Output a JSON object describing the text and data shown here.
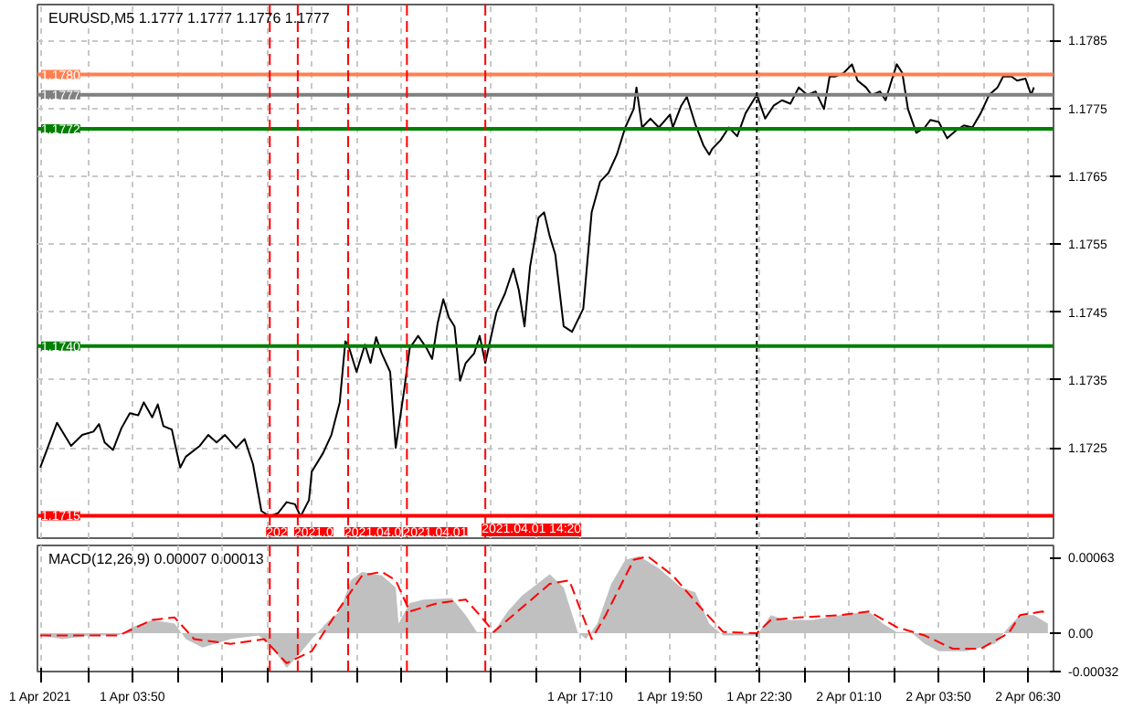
{
  "chart_data": [
    {
      "type": "line",
      "title": "EURUSD,M5  1.1777 1.1777 1.1776 1.1777",
      "xlim": [
        "2021-04-01T01:00",
        "2021-04-02T07:15"
      ],
      "ylim": [
        1.17117,
        1.17903
      ],
      "xticks": [
        {
          "value": "2021-04-01T01:05",
          "label": null
        },
        {
          "value": "2021-04-01T02:30",
          "label": null
        },
        {
          "value": "2021-04-01T03:50",
          "label": null
        },
        {
          "value": "2021-04-01T05:10",
          "label": null
        },
        {
          "value": "2021-04-01T06:30",
          "label": null
        },
        {
          "value": "2021-04-01T07:50",
          "label": null
        },
        {
          "value": "2021-04-01T09:10",
          "label": null
        },
        {
          "value": "2021-04-01T10:30",
          "label": null
        },
        {
          "value": "2021-04-01T11:50",
          "label": null
        },
        {
          "value": "2021-04-01T13:10",
          "label": null
        },
        {
          "value": "2021-04-01T14:30",
          "label": null
        },
        {
          "value": "2021-04-01T15:50",
          "label": null
        },
        {
          "value": "2021-04-01T17:10",
          "label": null
        },
        {
          "value": "2021-04-01T18:30",
          "label": null
        },
        {
          "value": "2021-04-01T19:50",
          "label": null
        },
        {
          "value": "2021-04-01T21:10",
          "label": null
        },
        {
          "value": "2021-04-01T22:30",
          "label": null
        },
        {
          "value": "2021-04-01T23:50",
          "label": null
        },
        {
          "value": "2021-04-02T01:10",
          "label": null
        },
        {
          "value": "2021-04-02T02:30",
          "label": null
        },
        {
          "value": "2021-04-02T03:50",
          "label": null
        },
        {
          "value": "2021-04-02T05:10",
          "label": null
        },
        {
          "value": "2021-04-02T06:30",
          "label": null
        }
      ],
      "yticks": [
        1.1725,
        1.1735,
        1.1745,
        1.1755,
        1.1765,
        1.1775,
        1.1785
      ],
      "grid": true,
      "tick_labels": "y",
      "series": [
        {
          "color": "#000000",
          "x": [
            "2021-04-01T01:05",
            "2021-04-01T01:35",
            "2021-04-01T02:00",
            "2021-04-01T02:20",
            "2021-04-01T02:40",
            "2021-04-01T02:50",
            "2021-04-01T03:00",
            "2021-04-01T03:15",
            "2021-04-01T03:30",
            "2021-04-01T03:45",
            "2021-04-01T04:00",
            "2021-04-01T04:10",
            "2021-04-01T04:25",
            "2021-04-01T04:35",
            "2021-04-01T04:45",
            "2021-04-01T05:00",
            "2021-04-01T05:15",
            "2021-04-01T05:25",
            "2021-04-01T05:50",
            "2021-04-01T06:05",
            "2021-04-01T06:20",
            "2021-04-01T06:35",
            "2021-04-01T06:55",
            "2021-04-01T07:10",
            "2021-04-01T07:25",
            "2021-04-01T07:40",
            "2021-04-01T07:55",
            "2021-04-01T08:10",
            "2021-04-01T08:25",
            "2021-04-01T08:40",
            "2021-04-01T08:50",
            "2021-04-01T09:05",
            "2021-04-01T09:10",
            "2021-04-01T09:30",
            "2021-04-01T09:45",
            "2021-04-01T09:55",
            "2021-04-01T10:00",
            "2021-04-01T10:10",
            "2021-04-01T10:15",
            "2021-04-01T10:30",
            "2021-04-01T10:45",
            "2021-04-01T10:55",
            "2021-04-01T11:05",
            "2021-04-01T11:15",
            "2021-04-01T11:30",
            "2021-04-01T11:40",
            "2021-04-01T11:55",
            "2021-04-01T12:05",
            "2021-04-01T12:20",
            "2021-04-01T12:35",
            "2021-04-01T12:45",
            "2021-04-01T12:55",
            "2021-04-01T13:05",
            "2021-04-01T13:15",
            "2021-04-01T13:25",
            "2021-04-01T13:35",
            "2021-04-01T13:45",
            "2021-04-01T14:00",
            "2021-04-01T14:10",
            "2021-04-01T14:20",
            "2021-04-01T14:40",
            "2021-04-01T14:55",
            "2021-04-01T15:10",
            "2021-04-01T15:20",
            "2021-04-01T15:30",
            "2021-04-01T15:40",
            "2021-04-01T15:55",
            "2021-04-01T16:05",
            "2021-04-01T16:15",
            "2021-04-01T16:25",
            "2021-04-01T16:40",
            "2021-04-01T16:55",
            "2021-04-01T17:15",
            "2021-04-01T17:30",
            "2021-04-01T17:45",
            "2021-04-01T18:00",
            "2021-04-01T18:15",
            "2021-04-01T18:30",
            "2021-04-01T18:45",
            "2021-04-01T18:50",
            "2021-04-01T19:00",
            "2021-04-01T19:15",
            "2021-04-01T19:30",
            "2021-04-01T19:50",
            "2021-04-01T19:55",
            "2021-04-01T20:10",
            "2021-04-01T20:20",
            "2021-04-01T20:35",
            "2021-04-01T20:50",
            "2021-04-01T21:00",
            "2021-04-01T21:05",
            "2021-04-01T21:20",
            "2021-04-01T21:35",
            "2021-04-01T21:50",
            "2021-04-01T22:05",
            "2021-04-01T22:25",
            "2021-04-01T22:40",
            "2021-04-01T22:55",
            "2021-04-01T23:10",
            "2021-04-01T23:25",
            "2021-04-01T23:40",
            "2021-04-01T23:55",
            "2021-04-02T00:10",
            "2021-04-02T00:25",
            "2021-04-02T00:35",
            "2021-04-02T00:45",
            "2021-04-02T01:00",
            "2021-04-02T01:15",
            "2021-04-02T01:25",
            "2021-04-02T01:40",
            "2021-04-02T01:50",
            "2021-04-02T02:05",
            "2021-04-02T02:15",
            "2021-04-02T02:25",
            "2021-04-02T02:35",
            "2021-04-02T02:45",
            "2021-04-02T02:55",
            "2021-04-02T03:10",
            "2021-04-02T03:25",
            "2021-04-02T03:35",
            "2021-04-02T03:50",
            "2021-04-02T04:05",
            "2021-04-02T04:20",
            "2021-04-02T04:35",
            "2021-04-02T04:50",
            "2021-04-02T05:05",
            "2021-04-02T05:20",
            "2021-04-02T05:35",
            "2021-04-02T05:45",
            "2021-04-02T06:00",
            "2021-04-02T06:10",
            "2021-04-02T06:25",
            "2021-04-02T06:35",
            "2021-04-02T06:40"
          ],
          "values": [
            1.17221,
            1.17287,
            1.17253,
            1.17269,
            1.17274,
            1.17285,
            1.17258,
            1.17247,
            1.17279,
            1.17301,
            1.17298,
            1.17317,
            1.17295,
            1.17314,
            1.17282,
            1.17277,
            1.17221,
            1.17237,
            1.17253,
            1.17269,
            1.17258,
            1.17269,
            1.1725,
            1.17263,
            1.17226,
            1.17157,
            1.17149,
            1.17154,
            1.1717,
            1.17167,
            1.17149,
            1.17173,
            1.17215,
            1.17242,
            1.17269,
            1.17301,
            1.17317,
            1.17407,
            1.17402,
            1.17362,
            1.17402,
            1.17375,
            1.17413,
            1.17389,
            1.17362,
            1.1725,
            1.17335,
            1.17397,
            1.17415,
            1.17397,
            1.17381,
            1.17434,
            1.17469,
            1.17442,
            1.17429,
            1.17349,
            1.17375,
            1.17389,
            1.17415,
            1.17375,
            1.1745,
            1.17477,
            1.17514,
            1.17482,
            1.17429,
            1.17517,
            1.17589,
            1.17597,
            1.17562,
            1.17535,
            1.17429,
            1.17421,
            1.17455,
            1.17597,
            1.17642,
            1.17655,
            1.17682,
            1.17722,
            1.17749,
            1.17781,
            1.17722,
            1.17735,
            1.17722,
            1.17741,
            1.17722,
            1.17754,
            1.17767,
            1.17727,
            1.17695,
            1.17682,
            1.1769,
            1.17703,
            1.17722,
            1.17709,
            1.17743,
            1.1777,
            1.17735,
            1.17754,
            1.17762,
            1.17757,
            1.17781,
            1.1777,
            1.17775,
            1.17749,
            1.17797,
            1.17797,
            1.17802,
            1.17815,
            1.17791,
            1.17781,
            1.1777,
            1.17775,
            1.17762,
            1.17789,
            1.17815,
            1.17802,
            1.17749,
            1.17714,
            1.17722,
            1.17733,
            1.1773,
            1.17706,
            1.17717,
            1.17725,
            1.17722,
            1.17743,
            1.1777,
            1.17781,
            1.17797,
            1.17797,
            1.17791,
            1.17794,
            1.1777,
            1.17781
          ]
        }
      ],
      "ref_lines": [
        {
          "axis": "y",
          "value": 1.178,
          "label": "1.1780",
          "color": "#ff7f50"
        },
        {
          "axis": "y",
          "value": 1.1777,
          "label": "1.1777",
          "color": "#808080"
        },
        {
          "axis": "y",
          "value": 1.1772,
          "label": "1.1772",
          "color": "#008000"
        },
        {
          "axis": "y",
          "value": 1.174,
          "label": "1.1740",
          "color": "#008000"
        },
        {
          "axis": "y",
          "value": 1.1715,
          "label": "1.1715",
          "color": "#ff0000"
        },
        {
          "axis": "x",
          "value": "2021-04-01T07:55",
          "label": "202",
          "color": "#ff0000",
          "line_style": "dashed"
        },
        {
          "axis": "x",
          "value": "2021-04-01T08:45",
          "label": "2021.0",
          "color": "#ff0000",
          "line_style": "dashed"
        },
        {
          "axis": "x",
          "value": "2021-04-01T10:15",
          "label": "2021.04.0",
          "color": "#ff0000",
          "line_style": "dashed"
        },
        {
          "axis": "x",
          "value": "2021-04-01T12:00",
          "label": "2021.04.01",
          "color": "#ff0000",
          "line_style": "dashed"
        },
        {
          "axis": "x",
          "value": "2021-04-01T14:20",
          "label": "2021.04.01 14:20",
          "color": "#ff0000",
          "line_style": "dashed"
        },
        {
          "axis": "x",
          "value": "2021-04-01T22:25",
          "color": "#000000",
          "line_style": "dotted"
        }
      ]
    },
    {
      "type": "line",
      "title": "MACD(12,26,9) 0.00007 0.00013",
      "xlim": [
        "2021-04-01T01:00",
        "2021-04-02T07:15"
      ],
      "ylim": [
        -0.00032,
        0.00073
      ],
      "xticks": [
        {
          "value": "2021-04-01T01:05",
          "label": "1 Apr 2021"
        },
        {
          "value": "2021-04-01T02:30",
          "label": null
        },
        {
          "value": "2021-04-01T03:50",
          "label": "1 Apr 03:50"
        },
        {
          "value": "2021-04-01T05:10",
          "label": null
        },
        {
          "value": "2021-04-01T06:30",
          "label": null
        },
        {
          "value": "2021-04-01T07:50",
          "label": null
        },
        {
          "value": "2021-04-01T09:10",
          "label": null
        },
        {
          "value": "2021-04-01T10:30",
          "label": null
        },
        {
          "value": "2021-04-01T11:50",
          "label": null
        },
        {
          "value": "2021-04-01T13:10",
          "label": null
        },
        {
          "value": "2021-04-01T14:30",
          "label": null
        },
        {
          "value": "2021-04-01T15:50",
          "label": null
        },
        {
          "value": "2021-04-01T17:10",
          "label": "1 Apr 17:10"
        },
        {
          "value": "2021-04-01T18:30",
          "label": null
        },
        {
          "value": "2021-04-01T19:50",
          "label": "1 Apr 19:50"
        },
        {
          "value": "2021-04-01T21:10",
          "label": null
        },
        {
          "value": "2021-04-01T22:30",
          "label": "1 Apr 22:30"
        },
        {
          "value": "2021-04-01T23:50",
          "label": null
        },
        {
          "value": "2021-04-02T01:10",
          "label": "2 Apr 01:10"
        },
        {
          "value": "2021-04-02T02:30",
          "label": null
        },
        {
          "value": "2021-04-02T03:50",
          "label": "2 Apr 03:50"
        },
        {
          "value": "2021-04-02T05:10",
          "label": null
        },
        {
          "value": "2021-04-02T06:30",
          "label": "2 Apr 06:30"
        }
      ],
      "yticks": [
        {
          "value": 0.00063,
          "label": "0.00063"
        },
        {
          "value": 0,
          "label": "0.00"
        },
        {
          "value": -0.00032,
          "label": "-0.00032"
        }
      ],
      "grid": "x",
      "series": [
        {
          "type": "area",
          "color": "#c0c0c0",
          "x": [
            "2021-04-01T01:05",
            "2021-04-01T01:45",
            "2021-04-01T02:35",
            "2021-04-01T03:25",
            "2021-04-01T03:50",
            "2021-04-01T04:25",
            "2021-04-01T05:05",
            "2021-04-01T05:25",
            "2021-04-01T05:55",
            "2021-04-01T06:45",
            "2021-04-01T07:35",
            "2021-04-01T08:00",
            "2021-04-01T08:25",
            "2021-04-01T08:45",
            "2021-04-01T09:10",
            "2021-04-01T09:35",
            "2021-04-01T10:00",
            "2021-04-01T10:20",
            "2021-04-01T10:40",
            "2021-04-01T11:15",
            "2021-04-01T11:40",
            "2021-04-01T11:45",
            "2021-04-01T12:05",
            "2021-04-01T12:30",
            "2021-04-01T13:20",
            "2021-04-01T13:45",
            "2021-04-01T14:05",
            "2021-04-01T14:35",
            "2021-04-01T15:00",
            "2021-04-01T15:25",
            "2021-04-01T16:15",
            "2021-04-01T16:40",
            "2021-04-01T17:05",
            "2021-04-01T17:20",
            "2021-04-01T17:40",
            "2021-04-01T18:05",
            "2021-04-01T18:30",
            "2021-04-01T18:55",
            "2021-04-01T19:30",
            "2021-04-01T20:10",
            "2021-04-01T20:35",
            "2021-04-01T21:00",
            "2021-04-01T21:25",
            "2021-04-01T22:25",
            "2021-04-01T22:50",
            "2021-04-01T23:15",
            "2021-04-02T00:05",
            "2021-04-02T00:55",
            "2021-04-02T01:45",
            "2021-04-02T02:10",
            "2021-04-02T02:35",
            "2021-04-02T03:00",
            "2021-04-02T03:25",
            "2021-04-02T03:50",
            "2021-04-02T04:40",
            "2021-04-02T05:30",
            "2021-04-02T05:55",
            "2021-04-02T06:15",
            "2021-04-02T06:40",
            "2021-04-02T07:05"
          ],
          "values": [
            -2e-05,
            -5e-05,
            -2e-05,
            -2e-05,
            5e-05,
            0.00011,
            8e-05,
            -5e-05,
            -0.00012,
            -5e-05,
            -2e-05,
            -0.00012,
            -0.00029,
            -0.00019,
            -5e-05,
            8e-05,
            0.00018,
            0.00044,
            0.00051,
            0.00048,
            0.00038,
            8e-05,
            0.00025,
            0.00028,
            0.00029,
            0.00015,
            1e-05,
            1e-05,
            0.00018,
            0.00031,
            0.00049,
            0.00038,
            1e-05,
            -5e-05,
            8e-05,
            0.00041,
            0.00061,
            0.00064,
            0.00054,
            0.00038,
            0.00034,
            8e-05,
            -2e-05,
            -2e-05,
            0.00015,
            0.00011,
            0.00011,
            0.00015,
            0.00018,
            8e-05,
            1e-05,
            1e-05,
            -9e-05,
            -0.00015,
            -0.00015,
            -9e-05,
            5e-05,
            0.00015,
            0.00015,
            8e-05
          ]
        },
        {
          "type": "line",
          "color": "#ff0000",
          "line_style": "dashed",
          "x": [
            "2021-04-01T01:05",
            "2021-04-01T02:35",
            "2021-04-01T03:25",
            "2021-04-01T04:25",
            "2021-04-01T05:05",
            "2021-04-01T05:40",
            "2021-04-01T06:45",
            "2021-04-01T07:45",
            "2021-04-01T08:25",
            "2021-04-01T09:10",
            "2021-04-01T10:00",
            "2021-04-01T10:40",
            "2021-04-01T11:15",
            "2021-04-01T11:40",
            "2021-04-01T12:05",
            "2021-04-01T12:55",
            "2021-04-01T13:45",
            "2021-04-01T14:10",
            "2021-04-01T14:35",
            "2021-04-01T15:25",
            "2021-04-01T16:15",
            "2021-04-01T16:50",
            "2021-04-01T17:30",
            "2021-04-01T17:55",
            "2021-04-01T18:45",
            "2021-04-01T19:10",
            "2021-04-01T19:55",
            "2021-04-01T20:45",
            "2021-04-01T21:25",
            "2021-04-01T22:25",
            "2021-04-01T22:50",
            "2021-04-01T23:40",
            "2021-04-02T00:55",
            "2021-04-02T01:45",
            "2021-04-02T02:35",
            "2021-04-02T03:25",
            "2021-04-02T04:15",
            "2021-04-02T05:05",
            "2021-04-02T05:55",
            "2021-04-02T06:15",
            "2021-04-02T06:55",
            "2021-04-02T07:05"
          ],
          "values": [
            -2e-05,
            -2e-05,
            -2e-05,
            0.00011,
            0.00013,
            -5e-05,
            -9e-05,
            -5e-05,
            -0.00025,
            -0.00015,
            0.00021,
            0.00048,
            0.00051,
            0.00044,
            0.00018,
            0.00025,
            0.00028,
            0.00015,
            1e-05,
            0.00021,
            0.00041,
            0.00044,
            -5e-05,
            0.00015,
            0.00061,
            0.00064,
            0.00048,
            0.00021,
            1e-05,
            0.0,
            0.00011,
            0.00013,
            0.00015,
            0.00018,
            5e-05,
            -2e-05,
            -0.00013,
            -0.00013,
            0.0,
            0.00015,
            0.00018,
            0.00016
          ]
        }
      ],
      "ref_lines": [
        {
          "axis": "x",
          "value": "2021-04-01T07:55",
          "color": "#ff0000",
          "line_style": "dashed"
        },
        {
          "axis": "x",
          "value": "2021-04-01T08:45",
          "color": "#ff0000",
          "line_style": "dashed"
        },
        {
          "axis": "x",
          "value": "2021-04-01T10:15",
          "color": "#ff0000",
          "line_style": "dashed"
        },
        {
          "axis": "x",
          "value": "2021-04-01T12:00",
          "color": "#ff0000",
          "line_style": "dashed"
        },
        {
          "axis": "x",
          "value": "2021-04-01T14:20",
          "color": "#ff0000",
          "line_style": "dashed"
        },
        {
          "axis": "x",
          "value": "2021-04-01T22:25",
          "color": "#000000",
          "line_style": "dotted"
        }
      ]
    }
  ]
}
